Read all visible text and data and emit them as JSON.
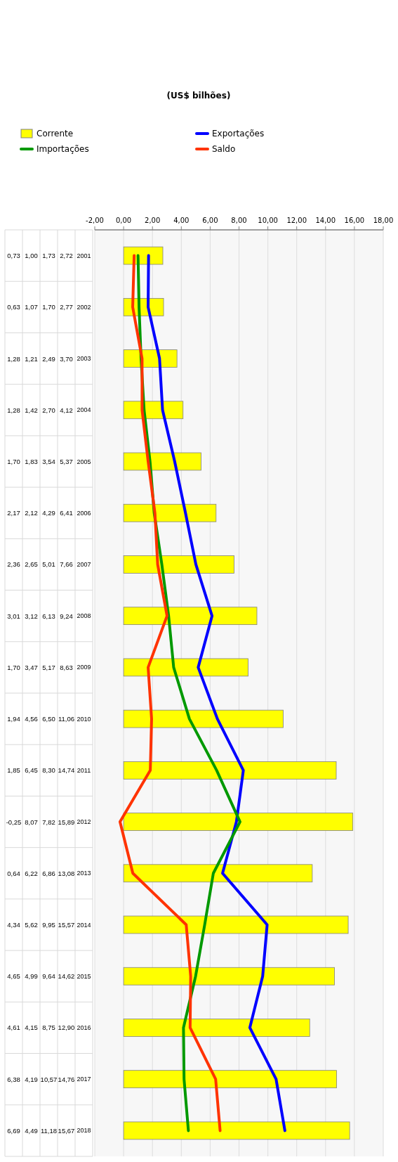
{
  "chart_data": {
    "type": "bar",
    "orientation": "horizontal",
    "title": "(US$ bilhões)",
    "categories": [
      "2001",
      "2002",
      "2003",
      "2004",
      "2005",
      "2006",
      "2007",
      "2008",
      "2009",
      "2010",
      "2011",
      "2012",
      "2013",
      "2014",
      "2015",
      "2016",
      "2017",
      "2018"
    ],
    "series": [
      {
        "name": "Corrente",
        "color": "#ffff00",
        "values": [
          2.72,
          2.77,
          3.7,
          4.12,
          5.37,
          6.41,
          7.66,
          9.24,
          8.63,
          11.06,
          14.74,
          15.89,
          13.08,
          15.57,
          14.62,
          12.9,
          14.76,
          15.67
        ],
        "value_labels": [
          "2,72",
          "2,77",
          "3,70",
          "4,12",
          "5,37",
          "6,41",
          "7,66",
          "9,24",
          "8,63",
          "11,06",
          "14,74",
          "15,89",
          "13,08",
          "15,57",
          "14,62",
          "12,90",
          "14,76",
          "15,67"
        ]
      },
      {
        "name": "Exportações",
        "type": "line",
        "color": "#0000ff",
        "values": [
          1.73,
          1.7,
          2.49,
          2.7,
          3.54,
          4.29,
          5.01,
          6.13,
          5.17,
          6.5,
          8.3,
          7.82,
          6.86,
          9.95,
          9.64,
          8.75,
          10.57,
          11.18
        ],
        "value_labels": [
          "1,73",
          "1,70",
          "2,49",
          "2,70",
          "3,54",
          "4,29",
          "5,01",
          "6,13",
          "5,17",
          "6,50",
          "8,30",
          "7,82",
          "6,86",
          "9,95",
          "9,64",
          "8,75",
          "10,57",
          "11,18"
        ]
      },
      {
        "name": "Importações",
        "type": "line",
        "color": "#009900",
        "values": [
          1.0,
          1.07,
          1.21,
          1.42,
          1.83,
          2.12,
          2.65,
          3.12,
          3.47,
          4.56,
          6.45,
          8.07,
          6.22,
          5.62,
          4.99,
          4.15,
          4.19,
          4.49
        ],
        "value_labels": [
          "1,00",
          "1,07",
          "1,21",
          "1,42",
          "1,83",
          "2,12",
          "2,65",
          "3,12",
          "3,47",
          "4,56",
          "6,45",
          "8,07",
          "6,22",
          "5,62",
          "4,99",
          "4,15",
          "4,19",
          "4,49"
        ]
      },
      {
        "name": "Saldo",
        "type": "line",
        "color": "#ff3300",
        "values": [
          0.73,
          0.63,
          1.28,
          1.28,
          1.7,
          2.17,
          2.36,
          3.01,
          1.7,
          1.94,
          1.85,
          -0.25,
          0.64,
          4.34,
          4.65,
          4.61,
          6.38,
          6.69
        ],
        "value_labels": [
          "0,73",
          "0,63",
          "1,28",
          "1,28",
          "1,70",
          "2,17",
          "2,36",
          "3,01",
          "1,70",
          "1,94",
          "1,85",
          "-0,25",
          "0,64",
          "4,34",
          "4,65",
          "4,61",
          "6,38",
          "6,69"
        ]
      }
    ],
    "xlim": [
      -2,
      18
    ],
    "xticks": [
      {
        "value": -2,
        "label": "-2,00"
      },
      {
        "value": 0,
        "label": "0,00"
      },
      {
        "value": 2,
        "label": "2,00"
      },
      {
        "value": 4,
        "label": "4,00"
      },
      {
        "value": 6,
        "label": "6,00"
      },
      {
        "value": 8,
        "label": "8,00"
      },
      {
        "value": 10,
        "label": "10,00"
      },
      {
        "value": 12,
        "label": "12,00"
      },
      {
        "value": 14,
        "label": "14,00"
      },
      {
        "value": 16,
        "label": "16,00"
      },
      {
        "value": 18,
        "label": "18,00"
      }
    ],
    "grid": "x",
    "legend": "top",
    "marker": "none",
    "line_style": "solid"
  }
}
